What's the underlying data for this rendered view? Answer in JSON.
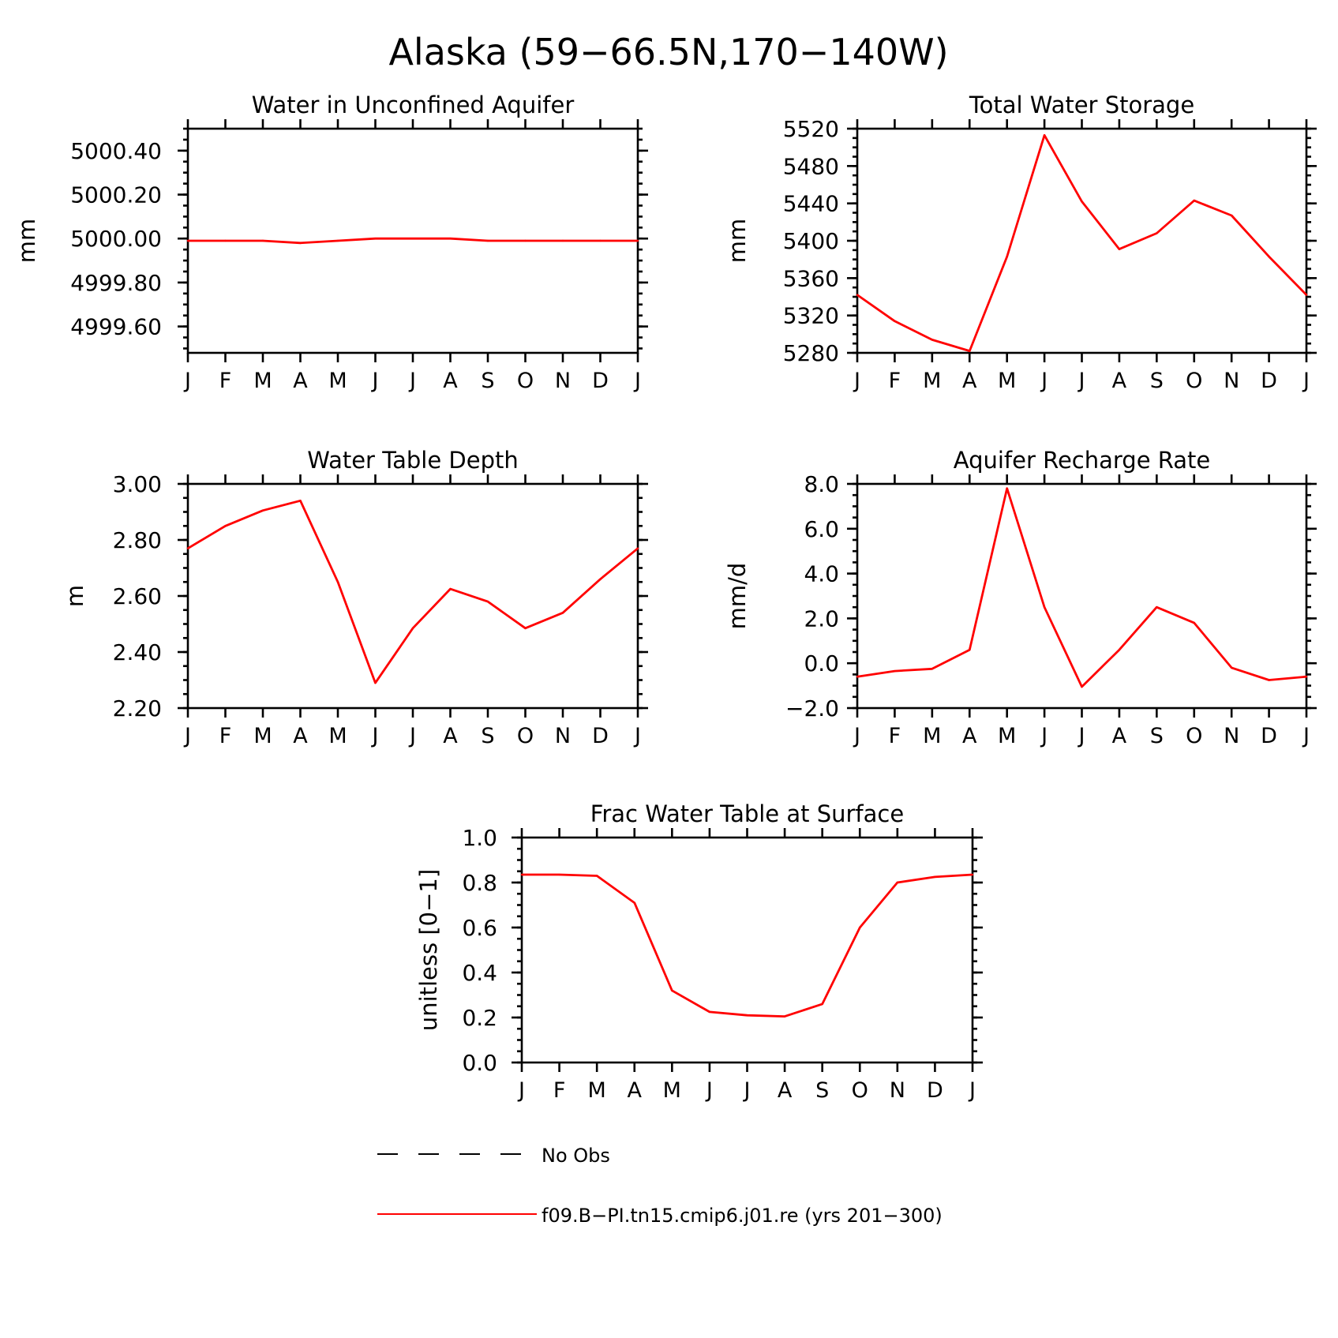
{
  "title": "Alaska (59−66.5N,170−140W)",
  "months": [
    "J",
    "F",
    "M",
    "A",
    "M",
    "J",
    "J",
    "A",
    "S",
    "O",
    "N",
    "D",
    "J"
  ],
  "series_color": "#ff0000",
  "legend": {
    "obs_label": "No Obs",
    "model_label": "f09.B−PI.tn15.cmip6.j01.re (yrs 201−300)"
  },
  "chart_data": [
    {
      "id": "aquifer",
      "type": "line",
      "title": "Water in Unconfined Aquifer",
      "ylabel": "mm",
      "ylim": [
        4999.48,
        5000.5
      ],
      "yticks": [
        4999.6,
        4999.8,
        5000.0,
        5000.2,
        5000.4
      ],
      "ytick_labels": [
        "4999.60",
        "4999.80",
        "5000.00",
        "5000.20",
        "5000.40"
      ],
      "yminor_step": 0.05,
      "x": [
        "J",
        "F",
        "M",
        "A",
        "M",
        "J",
        "J",
        "A",
        "S",
        "O",
        "N",
        "D",
        "J"
      ],
      "values": [
        4999.99,
        4999.99,
        4999.99,
        4999.98,
        4999.99,
        5000.0,
        5000.0,
        5000.0,
        4999.99,
        4999.99,
        4999.99,
        4999.99,
        4999.99
      ]
    },
    {
      "id": "tws",
      "type": "line",
      "title": "Total Water Storage",
      "ylabel": "mm",
      "ylim": [
        5280,
        5520
      ],
      "yticks": [
        5280,
        5320,
        5360,
        5400,
        5440,
        5480,
        5520
      ],
      "ytick_labels": [
        "5280",
        "5320",
        "5360",
        "5400",
        "5440",
        "5480",
        "5520"
      ],
      "yminor_step": 10,
      "x": [
        "J",
        "F",
        "M",
        "A",
        "M",
        "J",
        "J",
        "A",
        "S",
        "O",
        "N",
        "D",
        "J"
      ],
      "values": [
        5342,
        5314,
        5294,
        5282,
        5383,
        5513,
        5442,
        5391,
        5408,
        5443,
        5427,
        5383,
        5342
      ]
    },
    {
      "id": "wtd",
      "type": "line",
      "title": "Water Table Depth",
      "ylabel": "m",
      "ylim": [
        2.2,
        3.0
      ],
      "yticks": [
        2.2,
        2.4,
        2.6,
        2.8,
        3.0
      ],
      "ytick_labels": [
        "2.20",
        "2.40",
        "2.60",
        "2.80",
        "3.00"
      ],
      "yminor_step": 0.05,
      "x": [
        "J",
        "F",
        "M",
        "A",
        "M",
        "J",
        "J",
        "A",
        "S",
        "O",
        "N",
        "D",
        "J"
      ],
      "values": [
        2.77,
        2.85,
        2.905,
        2.94,
        2.65,
        2.29,
        2.485,
        2.625,
        2.58,
        2.485,
        2.54,
        2.66,
        2.77
      ]
    },
    {
      "id": "recharge",
      "type": "line",
      "title": "Aquifer Recharge Rate",
      "ylabel": "mm/d",
      "ylim": [
        -2.0,
        8.0
      ],
      "yticks": [
        -2.0,
        0.0,
        2.0,
        4.0,
        6.0,
        8.0
      ],
      "ytick_labels": [
        "−2.0",
        "0.0",
        "2.0",
        "4.0",
        "6.0",
        "8.0"
      ],
      "yminor_step": 0.5,
      "x": [
        "J",
        "F",
        "M",
        "A",
        "M",
        "J",
        "J",
        "A",
        "S",
        "O",
        "N",
        "D",
        "J"
      ],
      "values": [
        -0.6,
        -0.35,
        -0.25,
        0.6,
        7.8,
        2.5,
        -1.05,
        0.6,
        2.5,
        1.8,
        -0.2,
        -0.75,
        -0.6
      ]
    },
    {
      "id": "frac",
      "type": "line",
      "title": "Frac Water Table at Surface",
      "ylabel": "unitless [0−1]",
      "ylim": [
        0.0,
        1.0
      ],
      "yticks": [
        0.0,
        0.2,
        0.4,
        0.6,
        0.8,
        1.0
      ],
      "ytick_labels": [
        "0.0",
        "0.2",
        "0.4",
        "0.6",
        "0.8",
        "1.0"
      ],
      "yminor_step": 0.05,
      "x": [
        "J",
        "F",
        "M",
        "A",
        "M",
        "J",
        "J",
        "A",
        "S",
        "O",
        "N",
        "D",
        "J"
      ],
      "values": [
        0.835,
        0.835,
        0.83,
        0.71,
        0.32,
        0.225,
        0.21,
        0.205,
        0.26,
        0.6,
        0.8,
        0.825,
        0.835
      ]
    }
  ]
}
